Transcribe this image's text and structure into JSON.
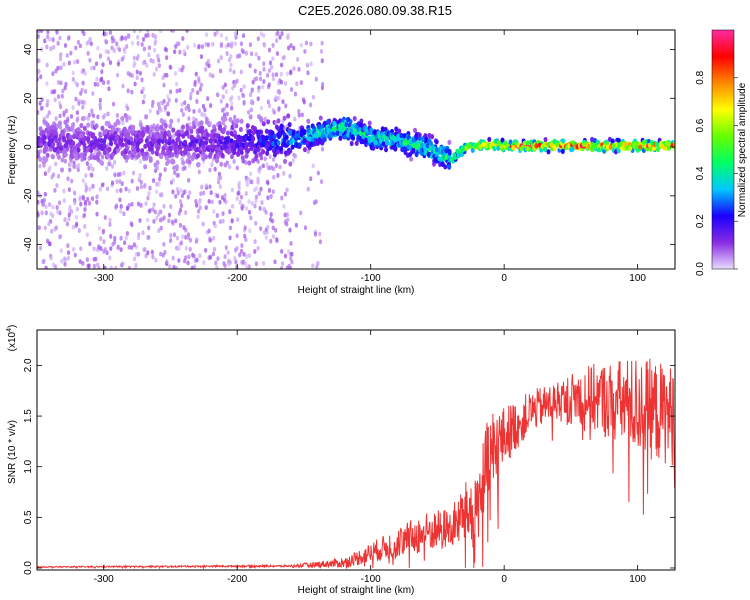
{
  "title": "C2E5.2026.080.09.38.R15",
  "chart_data": [
    {
      "type": "heatmap",
      "xlabel": "Height of straight line (km)",
      "ylabel": "Frequency (Hz)",
      "xlim": [
        -350,
        128
      ],
      "ylim": [
        -50,
        48
      ],
      "xticks": [
        -300,
        -200,
        -100,
        0,
        100
      ],
      "yticks": [
        -40,
        -20,
        0,
        20,
        40
      ],
      "colorbar": {
        "label": "Normalized spectral amplitude",
        "range": [
          0.0,
          1.0
        ],
        "ticks": [
          "0.0",
          "0.2",
          "0.4",
          "0.6",
          "0.8"
        ],
        "colors": [
          "#e8dcff",
          "#8a2be2",
          "#1a00ff",
          "#00c8ff",
          "#00ff66",
          "#66ff00",
          "#ffff00",
          "#ff8800",
          "#ff0000",
          "#ff2ba0"
        ]
      },
      "ridge": {
        "x": [
          -350,
          -300,
          -250,
          -200,
          -160,
          -140,
          -120,
          -100,
          -80,
          -60,
          -40,
          -30,
          -10,
          0,
          40,
          80,
          128
        ],
        "freq": [
          2,
          2,
          2,
          2,
          3,
          6,
          8,
          4,
          3,
          0,
          -5,
          0,
          1,
          0.5,
          0.5,
          0.5,
          0.5
        ],
        "amplitude": [
          0.15,
          0.15,
          0.15,
          0.2,
          0.35,
          0.45,
          0.5,
          0.45,
          0.45,
          0.5,
          0.45,
          0.7,
          0.85,
          0.9,
          0.92,
          0.9,
          0.9
        ]
      }
    },
    {
      "type": "line",
      "xlabel": "Height of straight line (km)",
      "ylabel": "SNR (10 * v/v)",
      "multiplier": "(x10",
      "multiplier_exp": "4",
      "multiplier_close": ")",
      "xlim": [
        -350,
        128
      ],
      "ylim": [
        -0.02,
        2.35
      ],
      "xticks": [
        -300,
        -200,
        -100,
        0,
        100
      ],
      "yticks": [
        "0.0",
        "0.5",
        "1.0",
        "1.5",
        "2.0"
      ],
      "line_color": "#ee3333",
      "envelope": {
        "x": [
          -350,
          -160,
          -120,
          -100,
          -80,
          -60,
          -40,
          -20,
          -10,
          0,
          20,
          40,
          60,
          80,
          100,
          128
        ],
        "mean": [
          0.01,
          0.02,
          0.05,
          0.15,
          0.25,
          0.35,
          0.4,
          0.65,
          1.1,
          1.3,
          1.55,
          1.65,
          1.7,
          1.65,
          1.6,
          1.5
        ],
        "spread": [
          0.005,
          0.01,
          0.05,
          0.1,
          0.15,
          0.2,
          0.2,
          0.4,
          0.5,
          0.3,
          0.2,
          0.2,
          0.3,
          0.4,
          0.5,
          0.5
        ]
      }
    }
  ]
}
